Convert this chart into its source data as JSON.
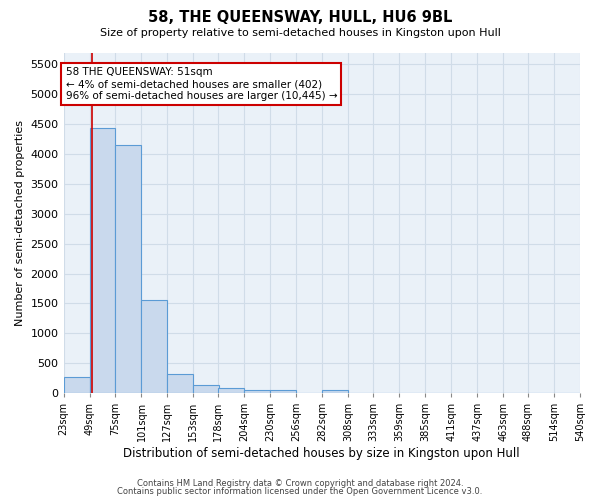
{
  "title": "58, THE QUEENSWAY, HULL, HU6 9BL",
  "subtitle": "Size of property relative to semi-detached houses in Kingston upon Hull",
  "xlabel": "Distribution of semi-detached houses by size in Kingston upon Hull",
  "ylabel": "Number of semi-detached properties",
  "footnote1": "Contains HM Land Registry data © Crown copyright and database right 2024.",
  "footnote2": "Contains public sector information licensed under the Open Government Licence v3.0.",
  "annotation_title": "58 THE QUEENSWAY: 51sqm",
  "annotation_line1": "← 4% of semi-detached houses are smaller (402)",
  "annotation_line2": "96% of semi-detached houses are larger (10,445) →",
  "bar_color": "#c9d9ed",
  "bar_edge_color": "#5b9bd5",
  "grid_color": "#d0dce8",
  "background_color": "#eaf1f8",
  "red_line_x": 51,
  "bin_edges": [
    23,
    49,
    75,
    101,
    127,
    153,
    178,
    204,
    230,
    256,
    282,
    308,
    333,
    359,
    385,
    411,
    437,
    463,
    488,
    514,
    540
  ],
  "bin_labels": [
    "23sqm",
    "49sqm",
    "75sqm",
    "101sqm",
    "127sqm",
    "153sqm",
    "178sqm",
    "204sqm",
    "230sqm",
    "256sqm",
    "282sqm",
    "308sqm",
    "333sqm",
    "359sqm",
    "385sqm",
    "411sqm",
    "437sqm",
    "463sqm",
    "488sqm",
    "514sqm",
    "540sqm"
  ],
  "bar_heights": [
    270,
    4440,
    4150,
    1560,
    325,
    140,
    80,
    55,
    55,
    0,
    55,
    0,
    0,
    0,
    0,
    0,
    0,
    0,
    0,
    0
  ],
  "ylim": [
    0,
    5700
  ],
  "yticks": [
    0,
    500,
    1000,
    1500,
    2000,
    2500,
    3000,
    3500,
    4000,
    4500,
    5000,
    5500
  ]
}
